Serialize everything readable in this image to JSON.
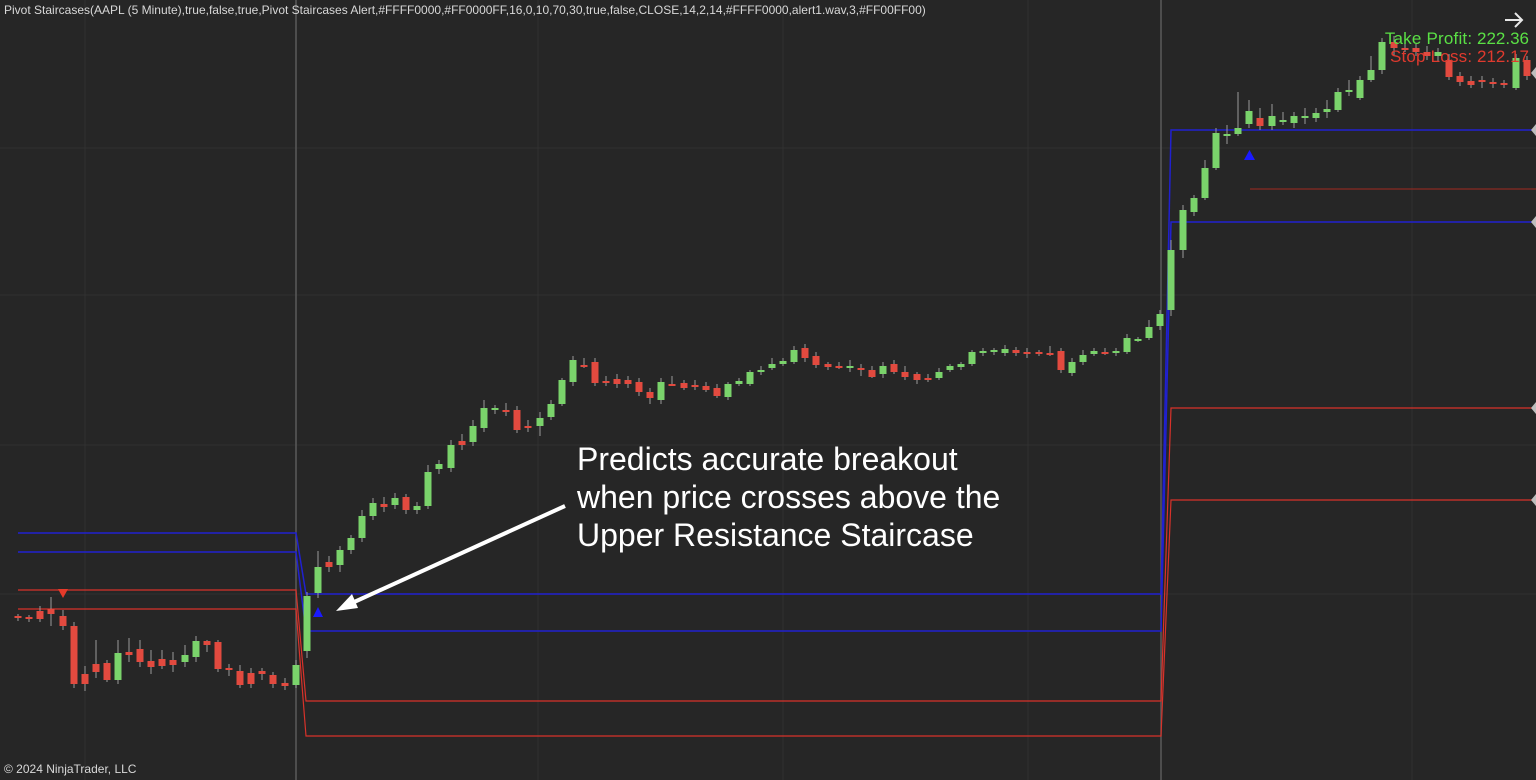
{
  "header": {
    "indicator_string": "Pivot Staircases(AAPL (5 Minute),true,false,true,Pivot Staircases Alert,#FFFF0000,#FF0000FF,16,0,10,70,30,true,false,CLOSE,14,2,14,#FFFF0000,alert1.wav,3,#FF00FF00)"
  },
  "annotation": {
    "line1": "Predicts accurate breakout",
    "line2": "when price crosses above the",
    "line3": "Upper Resistance Staircase"
  },
  "take_profit": {
    "label": "Take Profit:",
    "value": "222.36"
  },
  "stop_loss": {
    "label": "Stop Loss:",
    "value": "212.17"
  },
  "footer": {
    "copyright": "© 2024 NinjaTrader, LLC"
  },
  "icons": {
    "nav": "arrow-right-icon",
    "buy_signal": "triangle-up-icon",
    "sell_signal": "triangle-down-icon"
  },
  "colors": {
    "background": "#262626",
    "bull": "#7ad36b",
    "bear": "#e24a3f",
    "resistance": "#2020d0",
    "support": "#d8322a",
    "take_profit": "#5ae045",
    "stop_loss": "#e03a2e"
  }
}
